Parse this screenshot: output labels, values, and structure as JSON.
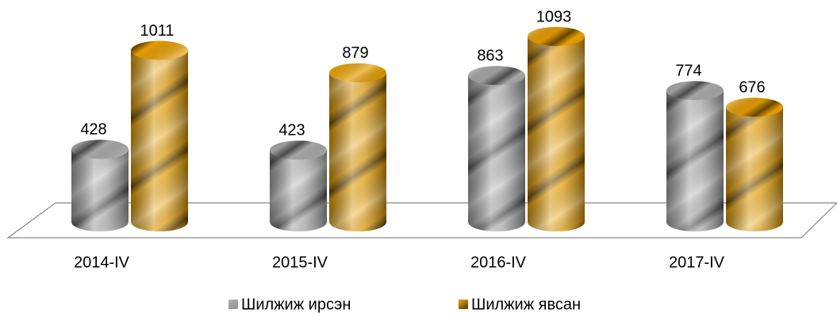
{
  "chart_data": {
    "type": "bar3d",
    "categories": [
      "2014-IV",
      "2015-IV",
      "2016-IV",
      "2017-IV"
    ],
    "series": [
      {
        "name": "Шилжиж ирсэн",
        "color": "#a6a6a6",
        "values": [
          428,
          423,
          863,
          774
        ]
      },
      {
        "name": "Шилжиж явсан",
        "color": "#e59c00",
        "values": [
          1011,
          879,
          1093,
          676
        ]
      }
    ]
  }
}
